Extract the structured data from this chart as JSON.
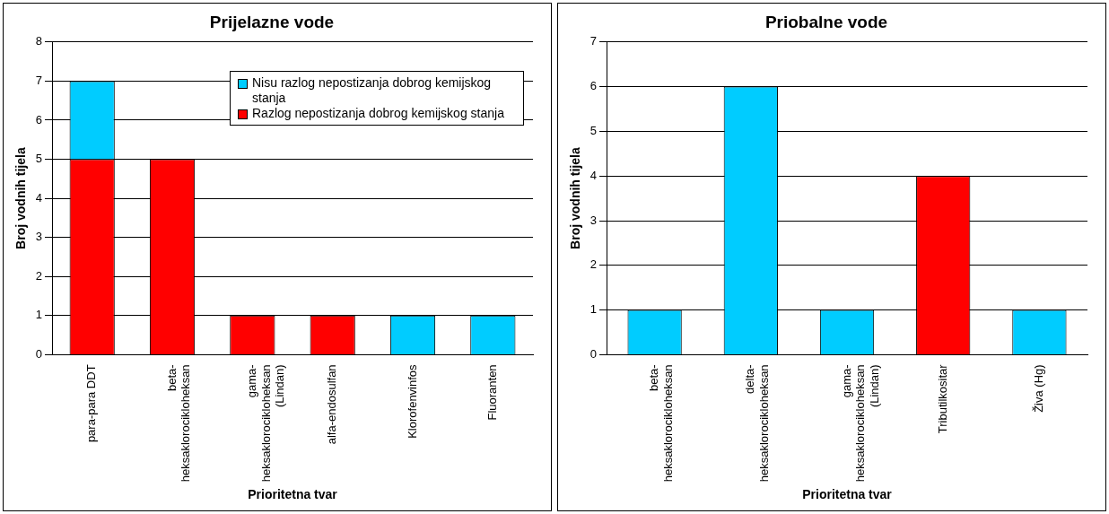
{
  "chart_data": [
    {
      "type": "bar",
      "title": "Prijelazne vode",
      "xlabel": "Prioritetna tvar",
      "ylabel": "Broj vodnih tijela",
      "categories": [
        "para-para DDT",
        "beta-heksaklorocikloheksan",
        "gama-heksaklorocikloheksan (Lindan)",
        "alfa-endosulfan",
        "Klorofenvinfos",
        "Fluoranten"
      ],
      "stacked": true,
      "series": [
        {
          "name": "Razlog nepostizanja dobrog kemijskog stanja",
          "color": "#ff0000",
          "values": [
            5,
            5,
            1,
            1,
            0,
            0
          ]
        },
        {
          "name": "Nisu razlog nepostizanja dobrog kemijskog stanja",
          "color": "#00ccff",
          "values": [
            2,
            0,
            0,
            0,
            1,
            1
          ]
        }
      ],
      "ylim": [
        0,
        8
      ],
      "yticks": [
        0,
        1,
        2,
        3,
        4,
        5,
        6,
        7,
        8
      ],
      "grid": "y",
      "legend": "top right"
    },
    {
      "type": "bar",
      "title": "Priobalne vode",
      "xlabel": "Prioritetna tvar",
      "ylabel": "Broj vodnih tijela",
      "categories": [
        "beta-heksaklorocikloheksan",
        "delta-heksaklorocikloheksan",
        "gama-heksaklorocikloheksan (Lindan)",
        "Tributilkositar",
        "Živa (Hg)"
      ],
      "values": [
        1,
        6,
        1,
        4,
        1
      ],
      "colors": [
        "#00ccff",
        "#00ccff",
        "#00ccff",
        "#ff0000",
        "#00ccff"
      ],
      "ylim": [
        0,
        7
      ],
      "yticks": [
        0,
        1,
        2,
        3,
        4,
        5,
        6,
        7
      ],
      "grid": "y"
    }
  ]
}
